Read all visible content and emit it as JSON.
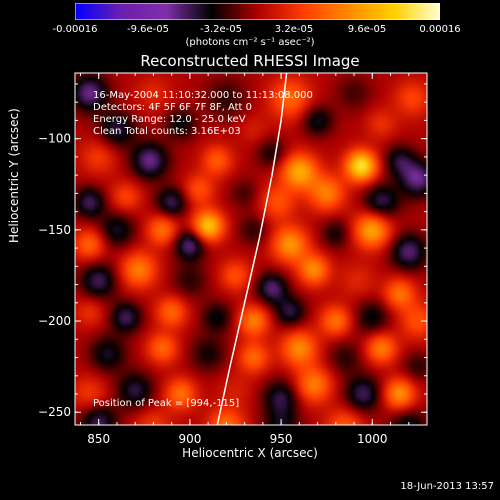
{
  "chart_data": {
    "type": "heatmap",
    "title": "Reconstructed RHESSI Image",
    "xlabel": "Heliocentric X (arcsec)",
    "ylabel": "Heliocentric Y (arcsec)",
    "xlim": [
      837,
      1030
    ],
    "ylim": [
      -257,
      -64
    ],
    "x_ticks": [
      850,
      900,
      950,
      1000
    ],
    "y_ticks": [
      -100,
      -150,
      -200,
      -250
    ],
    "info_lines": [
      "16-May-2004 11:10:32.000 to 11:13:08.000",
      "Detectors: 4F 5F 6F 7F 8F, Att 0",
      "Energy Range: 12.0 - 25.0 keV",
      "Clean     Total counts: 3.16E+03"
    ],
    "peak_label": "Position of Peak = [994,-115]",
    "peak_position": [
      994,
      -115
    ],
    "colorbar": {
      "range": [
        -0.00016,
        0.00016
      ],
      "tick_labels": [
        "-0.00016",
        "-9.6e-05",
        "-3.2e-05",
        "3.2e-05",
        "9.6e-05",
        "0.00016"
      ],
      "units": "(photons cm⁻² s⁻¹ asec⁻²)",
      "colors": [
        "#0000ff",
        "#6a1faf",
        "#7f2fa6",
        "#000000",
        "#ad0000",
        "#ff3b00",
        "#ff8a00",
        "#ffd000",
        "#ffffd0"
      ]
    },
    "limb_curve": [
      [
        915,
        -257
      ],
      [
        922,
        -225
      ],
      [
        930,
        -190
      ],
      [
        938,
        -155
      ],
      [
        945,
        -120
      ],
      [
        950,
        -90
      ],
      [
        953,
        -64
      ]
    ],
    "blobs": [
      [
        845,
        -75,
        7,
        -1.2
      ],
      [
        880,
        -75,
        7,
        0.4
      ],
      [
        920,
        -78,
        8,
        -0.5
      ],
      [
        955,
        -78,
        8,
        1.0
      ],
      [
        990,
        -75,
        7,
        -0.4
      ],
      [
        1022,
        -78,
        7,
        0.7
      ],
      [
        860,
        -95,
        7,
        -0.9
      ],
      [
        895,
        -92,
        6,
        -0.7
      ],
      [
        935,
        -95,
        6,
        0.3
      ],
      [
        970,
        -90,
        6,
        -0.8
      ],
      [
        1005,
        -92,
        6,
        0.5
      ],
      [
        850,
        -110,
        7,
        0.6
      ],
      [
        878,
        -112,
        7,
        -1.2
      ],
      [
        915,
        -112,
        6,
        0.9
      ],
      [
        945,
        -108,
        6,
        -0.6
      ],
      [
        960,
        -118,
        7,
        1.6
      ],
      [
        994,
        -115,
        6,
        2.2
      ],
      [
        1015,
        -112,
        6,
        -0.8
      ],
      [
        1025,
        -122,
        7,
        -1.2
      ],
      [
        845,
        -135,
        6,
        -1.0
      ],
      [
        865,
        -132,
        6,
        0.7
      ],
      [
        890,
        -135,
        6,
        -1.0
      ],
      [
        905,
        -128,
        6,
        0.8
      ],
      [
        930,
        -130,
        6,
        -0.4
      ],
      [
        948,
        -135,
        7,
        0.8
      ],
      [
        975,
        -130,
        7,
        1.2
      ],
      [
        1005,
        -135,
        7,
        -1.0
      ],
      [
        845,
        -158,
        6,
        1.0
      ],
      [
        860,
        -150,
        7,
        -0.8
      ],
      [
        885,
        -150,
        6,
        1.1
      ],
      [
        900,
        -158,
        6,
        -1.2
      ],
      [
        910,
        -148,
        6,
        1.9
      ],
      [
        935,
        -150,
        6,
        -0.5
      ],
      [
        955,
        -158,
        7,
        1.4
      ],
      [
        980,
        -152,
        6,
        -0.6
      ],
      [
        1000,
        -150,
        7,
        1.6
      ],
      [
        1020,
        -162,
        7,
        -1.1
      ],
      [
        850,
        -178,
        7,
        -1.0
      ],
      [
        872,
        -172,
        7,
        1.2
      ],
      [
        900,
        -178,
        7,
        -0.5
      ],
      [
        925,
        -175,
        6,
        0.8
      ],
      [
        945,
        -182,
        6,
        -1.1
      ],
      [
        968,
        -172,
        6,
        1.3
      ],
      [
        992,
        -178,
        7,
        0.4
      ],
      [
        1015,
        -185,
        6,
        1.1
      ],
      [
        845,
        -195,
        6,
        0.5
      ],
      [
        865,
        -198,
        6,
        -1.0
      ],
      [
        890,
        -195,
        6,
        1.0
      ],
      [
        915,
        -198,
        6,
        -0.7
      ],
      [
        935,
        -200,
        6,
        1.2
      ],
      [
        955,
        -195,
        6,
        -0.9
      ],
      [
        980,
        -200,
        6,
        1.1
      ],
      [
        1000,
        -198,
        7,
        -0.7
      ],
      [
        1025,
        -200,
        7,
        0.8
      ],
      [
        855,
        -218,
        7,
        -0.8
      ],
      [
        885,
        -215,
        6,
        1.0
      ],
      [
        910,
        -218,
        7,
        -0.6
      ],
      [
        935,
        -220,
        6,
        1.0
      ],
      [
        960,
        -215,
        7,
        1.3
      ],
      [
        985,
        -220,
        7,
        -0.5
      ],
      [
        1005,
        -215,
        6,
        1.2
      ],
      [
        1025,
        -225,
        6,
        -0.5
      ],
      [
        845,
        -240,
        7,
        0.6
      ],
      [
        870,
        -238,
        7,
        -0.9
      ],
      [
        895,
        -240,
        6,
        1.1
      ],
      [
        925,
        -238,
        7,
        0.3
      ],
      [
        950,
        -242,
        7,
        -0.9
      ],
      [
        968,
        -235,
        7,
        1.2
      ],
      [
        995,
        -240,
        7,
        -1.0
      ],
      [
        1015,
        -240,
        6,
        1.4
      ],
      [
        850,
        -255,
        7,
        -1.0
      ],
      [
        880,
        -258,
        7,
        0.6
      ],
      [
        920,
        -258,
        7,
        1.1
      ],
      [
        950,
        -258,
        7,
        -0.7
      ],
      [
        985,
        -258,
        7,
        0.9
      ],
      [
        1020,
        -258,
        7,
        -0.8
      ]
    ]
  },
  "footer_date": "18-Jun-2013 13:57"
}
